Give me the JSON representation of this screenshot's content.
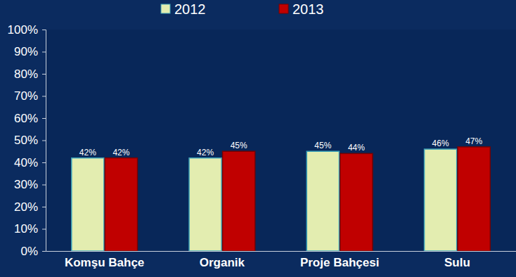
{
  "chart_data": {
    "type": "bar",
    "categories": [
      "Komşu Bahçe",
      "Organik",
      "Proje Bahçesi",
      "Sulu"
    ],
    "series": [
      {
        "name": "2012",
        "color": "#e3edb0",
        "values": [
          42,
          42,
          45,
          46
        ],
        "value_labels": [
          "42%",
          "42%",
          "45%",
          "46%"
        ]
      },
      {
        "name": "2013",
        "color": "#c00000",
        "values": [
          42,
          45,
          44,
          47
        ],
        "value_labels": [
          "42%",
          "45%",
          "44%",
          "47%"
        ]
      }
    ],
    "ylim": [
      0,
      100
    ],
    "yticks": [
      {
        "value": 0,
        "label": "0%"
      },
      {
        "value": 10,
        "label": "10%"
      },
      {
        "value": 20,
        "label": "20%"
      },
      {
        "value": 30,
        "label": "30%"
      },
      {
        "value": 40,
        "label": "40%"
      },
      {
        "value": 50,
        "label": "50%"
      },
      {
        "value": 60,
        "label": "60%"
      },
      {
        "value": 70,
        "label": "70%"
      },
      {
        "value": 80,
        "label": "80%"
      },
      {
        "value": 90,
        "label": "90%"
      },
      {
        "value": 100,
        "label": "100%"
      }
    ],
    "grid": false,
    "legend": "top",
    "data_labels": true
  }
}
